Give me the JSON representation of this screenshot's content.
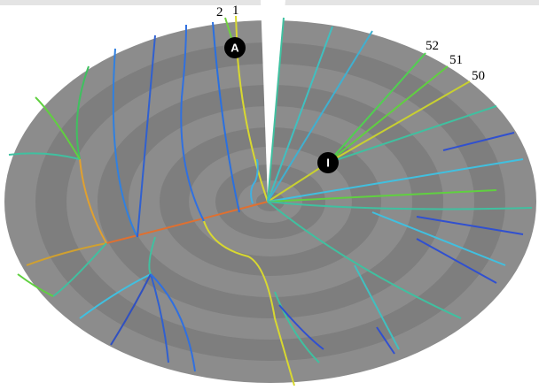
{
  "labels": {
    "top_left": [
      "2",
      "1"
    ],
    "top_right": [
      "52",
      "51",
      "50"
    ]
  },
  "markers": [
    "A",
    "I"
  ]
}
